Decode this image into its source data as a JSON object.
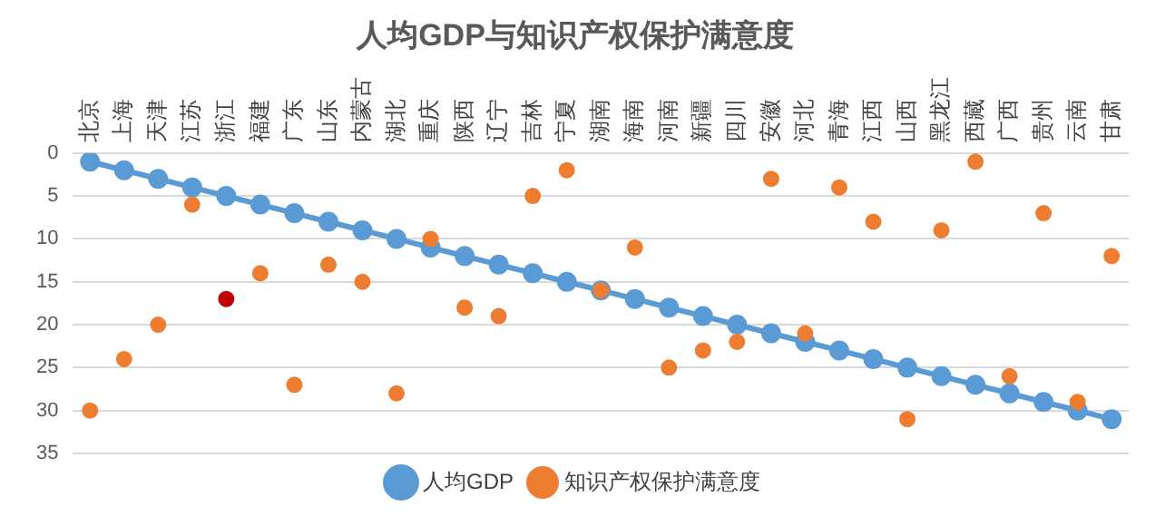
{
  "chart_data": {
    "type": "line",
    "title": "人均GDP与知识产权保护满意度",
    "categories": [
      "北京",
      "上海",
      "天津",
      "江苏",
      "浙江",
      "福建",
      "广东",
      "山东",
      "内蒙古",
      "湖北",
      "重庆",
      "陕西",
      "辽宁",
      "吉林",
      "宁夏",
      "湖南",
      "海南",
      "河南",
      "新疆",
      "四川",
      "安徽",
      "河北",
      "青海",
      "江西",
      "山西",
      "黑龙江",
      "西藏",
      "广西",
      "贵州",
      "云南",
      "甘肃"
    ],
    "series": [
      {
        "name": "人均GDP",
        "color": "#5b9bd5",
        "values": [
          1,
          2,
          3,
          4,
          5,
          6,
          7,
          8,
          9,
          10,
          11,
          12,
          13,
          14,
          15,
          16,
          17,
          18,
          19,
          20,
          21,
          22,
          23,
          24,
          25,
          26,
          27,
          28,
          29,
          30,
          31
        ]
      },
      {
        "name": "知识产权保护满意度",
        "type": "scatter",
        "color": "#ed7d31",
        "colors": [
          "#ed7d31",
          "#ed7d31",
          "#ed7d31",
          "#ed7d31",
          "#c00000",
          "#ed7d31",
          "#ed7d31",
          "#ed7d31",
          "#ed7d31",
          "#ed7d31",
          "#ed7d31",
          "#ed7d31",
          "#ed7d31",
          "#ed7d31",
          "#ed7d31",
          "#ed7d31",
          "#ed7d31",
          "#ed7d31",
          "#ed7d31",
          "#ed7d31",
          "#ed7d31",
          "#ed7d31",
          "#ed7d31",
          "#ed7d31",
          "#ed7d31",
          "#ed7d31",
          "#ed7d31",
          "#ed7d31",
          "#ed7d31",
          "#ed7d31",
          "#ed7d31"
        ],
        "values": [
          30,
          24,
          20,
          6,
          17,
          14,
          27,
          13,
          15,
          28,
          10,
          18,
          19,
          5,
          2,
          16,
          11,
          25,
          23,
          22,
          3,
          21,
          4,
          8,
          31,
          9,
          1,
          26,
          7,
          29,
          12
        ]
      }
    ],
    "ylim": [
      35,
      0
    ],
    "yticks": [
      0,
      5,
      10,
      15,
      20,
      25,
      30,
      35
    ],
    "grid": "y",
    "legend": "bottom",
    "marker": "circle"
  }
}
